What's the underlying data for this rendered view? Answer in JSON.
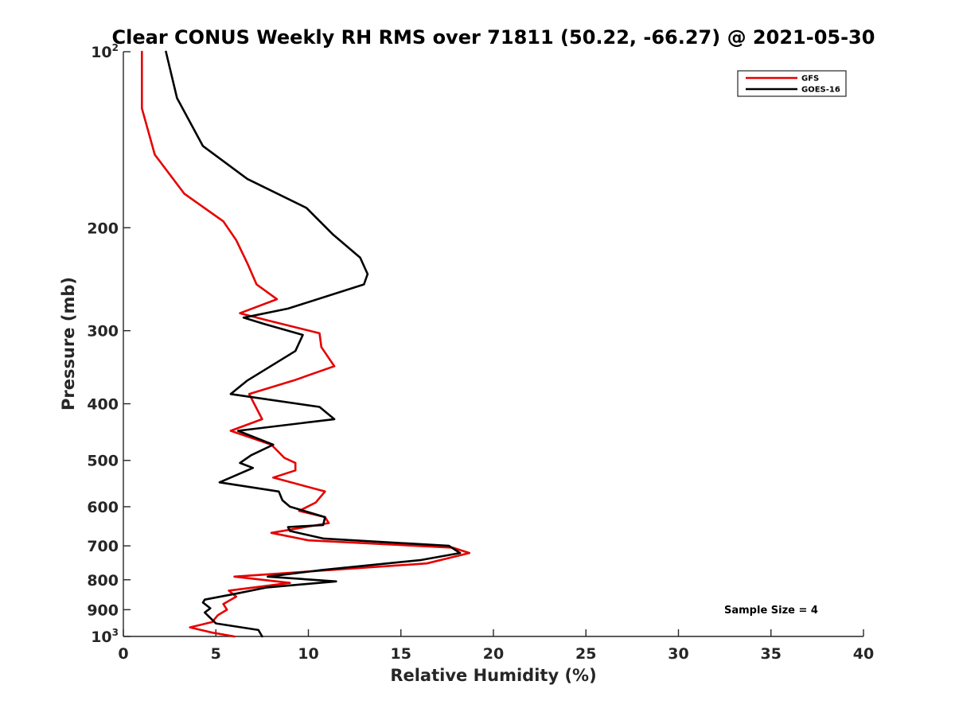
{
  "chart_data": {
    "type": "line",
    "title": "Clear CONUS Weekly RH RMS over 71811 (50.22, -66.27) @ 2021-05-30",
    "xlabel": "Relative Humidity (%)",
    "ylabel": "Pressure (mb)",
    "xlim": [
      0,
      40
    ],
    "ylim": [
      100,
      1000
    ],
    "y_scale": "log",
    "y_reversed": true,
    "grid": false,
    "legend_position": "top-right",
    "x_ticks": [
      "0",
      "5",
      "10",
      "15",
      "20",
      "25",
      "30",
      "35",
      "40"
    ],
    "y_ticks": [
      {
        "value": 100,
        "base": "10",
        "exp": "2"
      },
      {
        "value": 200,
        "label": "200"
      },
      {
        "value": 300,
        "label": "300"
      },
      {
        "value": 400,
        "label": "400"
      },
      {
        "value": 500,
        "label": "500"
      },
      {
        "value": 600,
        "label": "600"
      },
      {
        "value": 700,
        "label": "700"
      },
      {
        "value": 800,
        "label": "800"
      },
      {
        "value": 900,
        "label": "900"
      },
      {
        "value": 1000,
        "base": "10",
        "exp": "3"
      }
    ],
    "annotation": "Sample Size = 4",
    "series": [
      {
        "name": "GFS",
        "color": "#e60000",
        "points": [
          [
            1.0,
            100
          ],
          [
            1.0,
            125
          ],
          [
            1.7,
            150
          ],
          [
            3.3,
            175
          ],
          [
            5.4,
            195
          ],
          [
            6.1,
            210
          ],
          [
            6.7,
            230
          ],
          [
            7.2,
            250
          ],
          [
            8.3,
            265
          ],
          [
            6.3,
            280
          ],
          [
            7.8,
            288
          ],
          [
            10.6,
            303
          ],
          [
            10.7,
            320
          ],
          [
            11.4,
            345
          ],
          [
            9.2,
            365
          ],
          [
            6.8,
            385
          ],
          [
            7.5,
            425
          ],
          [
            5.8,
            445
          ],
          [
            8.0,
            470
          ],
          [
            8.7,
            495
          ],
          [
            9.3,
            505
          ],
          [
            9.3,
            520
          ],
          [
            8.1,
            535
          ],
          [
            10.9,
            565
          ],
          [
            10.4,
            590
          ],
          [
            9.5,
            610
          ],
          [
            10.9,
            625
          ],
          [
            11.1,
            640
          ],
          [
            8.0,
            665
          ],
          [
            10.0,
            685
          ],
          [
            17.8,
            705
          ],
          [
            18.7,
            720
          ],
          [
            16.4,
            750
          ],
          [
            6.0,
            790
          ],
          [
            9.0,
            810
          ],
          [
            5.7,
            835
          ],
          [
            6.1,
            855
          ],
          [
            5.4,
            880
          ],
          [
            5.6,
            900
          ],
          [
            5.1,
            920
          ],
          [
            4.8,
            945
          ],
          [
            3.6,
            965
          ],
          [
            4.8,
            985
          ],
          [
            6.0,
            1000
          ]
        ]
      },
      {
        "name": "GOES-16",
        "color": "#000000",
        "points": [
          [
            2.3,
            100
          ],
          [
            2.9,
            120
          ],
          [
            4.3,
            145
          ],
          [
            6.7,
            165
          ],
          [
            9.9,
            185
          ],
          [
            11.3,
            205
          ],
          [
            12.8,
            225
          ],
          [
            13.2,
            240
          ],
          [
            13.0,
            250
          ],
          [
            8.9,
            275
          ],
          [
            6.5,
            285
          ],
          [
            7.6,
            292
          ],
          [
            9.7,
            305
          ],
          [
            9.3,
            325
          ],
          [
            6.7,
            365
          ],
          [
            5.8,
            385
          ],
          [
            10.6,
            405
          ],
          [
            11.4,
            425
          ],
          [
            6.2,
            445
          ],
          [
            8.1,
            470
          ],
          [
            6.9,
            490
          ],
          [
            6.3,
            505
          ],
          [
            7.0,
            515
          ],
          [
            5.2,
            545
          ],
          [
            8.4,
            565
          ],
          [
            8.6,
            585
          ],
          [
            9.0,
            600
          ],
          [
            10.9,
            625
          ],
          [
            10.8,
            645
          ],
          [
            8.9,
            650
          ],
          [
            9.0,
            660
          ],
          [
            10.8,
            680
          ],
          [
            17.6,
            700
          ],
          [
            18.2,
            720
          ],
          [
            16.1,
            740
          ],
          [
            10.7,
            770
          ],
          [
            7.8,
            790
          ],
          [
            11.5,
            805
          ],
          [
            7.7,
            825
          ],
          [
            6.1,
            845
          ],
          [
            4.4,
            865
          ],
          [
            4.3,
            875
          ],
          [
            4.7,
            895
          ],
          [
            4.4,
            910
          ],
          [
            4.7,
            930
          ],
          [
            5.0,
            950
          ],
          [
            7.3,
            975
          ],
          [
            7.5,
            1000
          ]
        ]
      }
    ]
  }
}
